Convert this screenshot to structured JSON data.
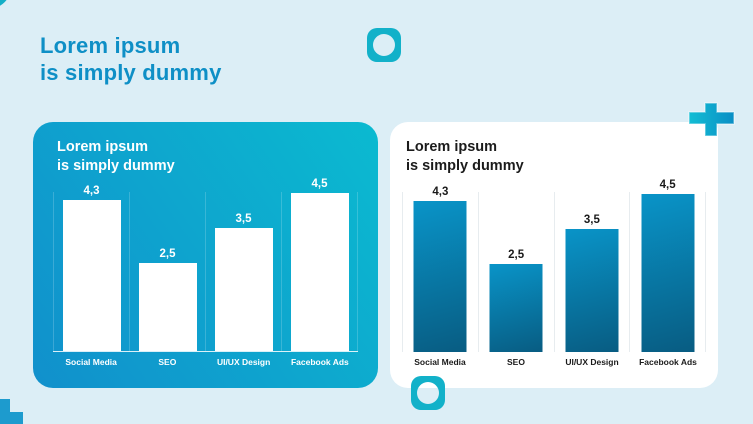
{
  "header": {
    "title": "Lorem ipsum\nis simply dummy"
  },
  "decor": {
    "ring_color": "#14afc7",
    "square_ring_color": "#12b1c9",
    "plus_gradient_start": "#13bed4",
    "plus_gradient_end": "#0a8ec5",
    "plus_bottom_color": "#1d9bce",
    "page_background": "#dceef6",
    "accent_text": "#0e8fc6"
  },
  "chart_data": [
    {
      "type": "bar",
      "title": "Lorem ipsum\nis simply dummy",
      "categories": [
        "Social Media",
        "SEO",
        "UI/UX Design",
        "Facebook Ads"
      ],
      "values": [
        4.3,
        2.5,
        3.5,
        4.5
      ],
      "value_labels": [
        "4,3",
        "2,5",
        "3,5",
        "4,5"
      ],
      "ylim": [
        0,
        4.55
      ],
      "xlabel": "",
      "ylabel": "",
      "legend": "none",
      "grid": "vertical-category-separators",
      "bar_top": "#ffffff",
      "bar_bottom": "#ffffff",
      "panel_gradient_start": "#1190cc",
      "panel_gradient_end": "#0bbad0",
      "label_color": "#ffffff"
    },
    {
      "type": "bar",
      "title": "Lorem ipsum\nis simply dummy",
      "categories": [
        "Social Media",
        "SEO",
        "UI/UX Design",
        "Facebook Ads"
      ],
      "values": [
        4.3,
        2.5,
        3.5,
        4.5
      ],
      "value_labels": [
        "4,3",
        "2,5",
        "3,5",
        "4,5"
      ],
      "ylim": [
        0,
        4.55
      ],
      "xlabel": "",
      "ylabel": "",
      "legend": "none",
      "grid": "vertical-category-separators",
      "bar_top": "#0994c8",
      "bar_bottom": "#085c82",
      "panel_background": "#ffffff",
      "label_color": "#1a1a1a"
    }
  ]
}
